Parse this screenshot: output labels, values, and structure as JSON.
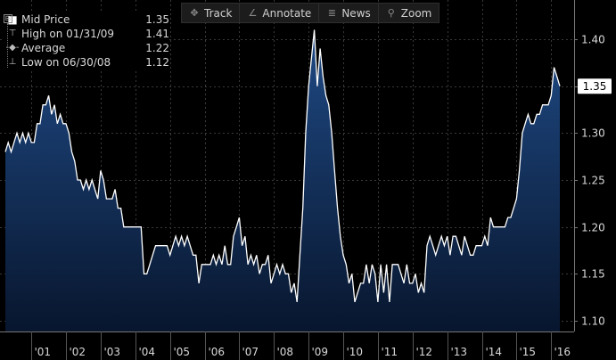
{
  "toolbar": {
    "track_label": "Track",
    "annotate_label": "Annotate",
    "news_label": "News",
    "zoom_label": "Zoom"
  },
  "legend": {
    "toggle_symbol": "⊟",
    "mid_label": "Mid Price",
    "mid_value": "1.35",
    "high_label": "High on 01/31/09",
    "high_value": "1.41",
    "avg_label": "Average",
    "avg_value": "1.22",
    "low_label": "Low on 06/30/08",
    "low_value": "1.12"
  },
  "current_price_label": "1.35",
  "colors": {
    "background": "#000000",
    "line": "#ffffff",
    "area_top": "#1f4a85",
    "area_bottom": "#08162e",
    "price_tag": "#ffffff"
  },
  "chart_data": {
    "type": "area",
    "y_ticks": [
      "1.10",
      "1.15",
      "1.20",
      "1.25",
      "1.30",
      "1.35",
      "1.40"
    ],
    "ylim": [
      1.09,
      1.43
    ],
    "x_tick_labels": [
      "'01",
      "'02",
      "'03",
      "'04",
      "'05",
      "'06",
      "'07",
      "'08",
      "'09",
      "'10",
      "'11",
      "'12",
      "'13",
      "'14",
      "'15",
      "'16"
    ],
    "x_start": 2000.25,
    "x_end": 2016.25,
    "grid": true,
    "series": [
      {
        "values": [
          1.28,
          1.29,
          1.28,
          1.29,
          1.3,
          1.29,
          1.3,
          1.29,
          1.3,
          1.29,
          1.29,
          1.31,
          1.31,
          1.33,
          1.33,
          1.34,
          1.32,
          1.33,
          1.31,
          1.32,
          1.31,
          1.31,
          1.3,
          1.28,
          1.27,
          1.25,
          1.25,
          1.24,
          1.25,
          1.24,
          1.25,
          1.24,
          1.23,
          1.26,
          1.25,
          1.23,
          1.23,
          1.23,
          1.24,
          1.22,
          1.22,
          1.2,
          1.2,
          1.2,
          1.2,
          1.2,
          1.2,
          1.2,
          1.15,
          1.15,
          1.16,
          1.17,
          1.18,
          1.18,
          1.18,
          1.18,
          1.18,
          1.17,
          1.18,
          1.19,
          1.18,
          1.19,
          1.18,
          1.19,
          1.18,
          1.17,
          1.17,
          1.14,
          1.16,
          1.16,
          1.16,
          1.16,
          1.17,
          1.16,
          1.17,
          1.16,
          1.18,
          1.16,
          1.16,
          1.19,
          1.2,
          1.21,
          1.18,
          1.19,
          1.16,
          1.17,
          1.16,
          1.17,
          1.15,
          1.16,
          1.16,
          1.17,
          1.14,
          1.15,
          1.16,
          1.15,
          1.16,
          1.15,
          1.15,
          1.13,
          1.14,
          1.12,
          1.17,
          1.22,
          1.3,
          1.35,
          1.38,
          1.41,
          1.35,
          1.39,
          1.36,
          1.34,
          1.33,
          1.3,
          1.26,
          1.22,
          1.19,
          1.17,
          1.16,
          1.14,
          1.15,
          1.12,
          1.13,
          1.14,
          1.14,
          1.16,
          1.14,
          1.16,
          1.15,
          1.12,
          1.16,
          1.13,
          1.16,
          1.12,
          1.16,
          1.16,
          1.16,
          1.15,
          1.14,
          1.16,
          1.14,
          1.14,
          1.15,
          1.13,
          1.14,
          1.13,
          1.18,
          1.19,
          1.18,
          1.17,
          1.18,
          1.19,
          1.18,
          1.19,
          1.17,
          1.19,
          1.19,
          1.18,
          1.17,
          1.19,
          1.18,
          1.17,
          1.17,
          1.18,
          1.18,
          1.18,
          1.19,
          1.18,
          1.21,
          1.2,
          1.2,
          1.2,
          1.2,
          1.2,
          1.21,
          1.21,
          1.22,
          1.23,
          1.26,
          1.3,
          1.31,
          1.32,
          1.31,
          1.31,
          1.32,
          1.32,
          1.33,
          1.33,
          1.33,
          1.34,
          1.37,
          1.36,
          1.35
        ]
      }
    ]
  }
}
